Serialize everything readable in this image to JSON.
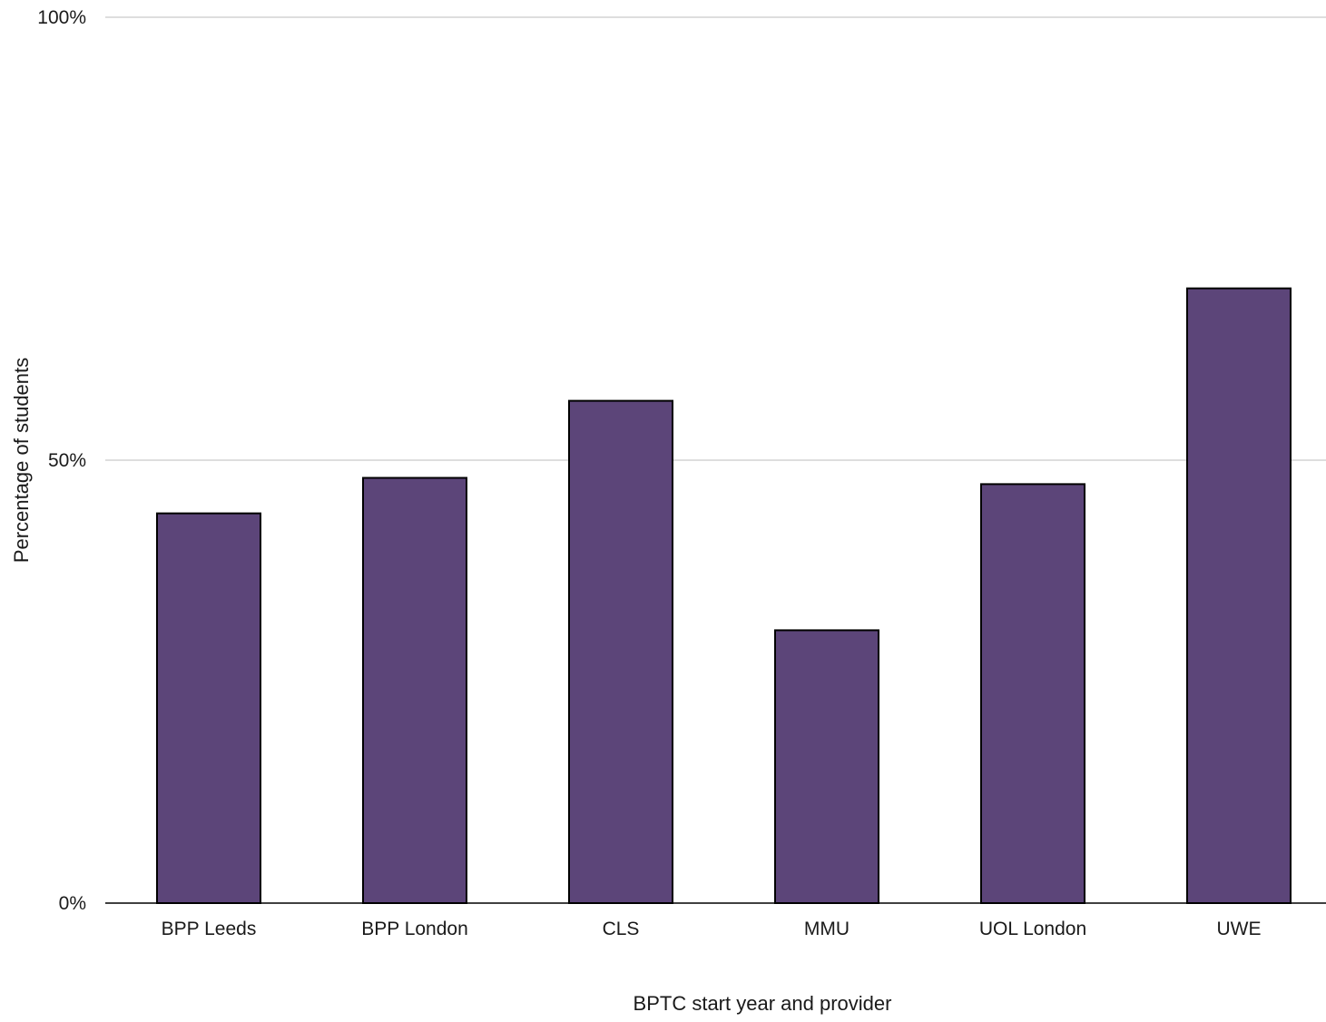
{
  "chart_data": {
    "type": "bar",
    "categories": [
      "BPP Leeds",
      "BPP London",
      "CLS",
      "MMU",
      "UOL London",
      "UWE"
    ],
    "series": [
      {
        "values": [
          44,
          48,
          56.7,
          30.8,
          47.3,
          69.4
        ]
      }
    ],
    "xlabel": "BPTC start year and provider",
    "ylabel": "Percentage of students",
    "ylim": [
      0,
      100
    ],
    "yticks": [
      0,
      50,
      100
    ],
    "ytick_labels": [
      "0%",
      "50%",
      "100%"
    ],
    "grid": true,
    "legend": "none",
    "colors": {
      "bar_fill": "#5c4579",
      "bar_stroke": "#000000",
      "gridline": "#d4d4d4",
      "axis_line": "#000000"
    }
  }
}
